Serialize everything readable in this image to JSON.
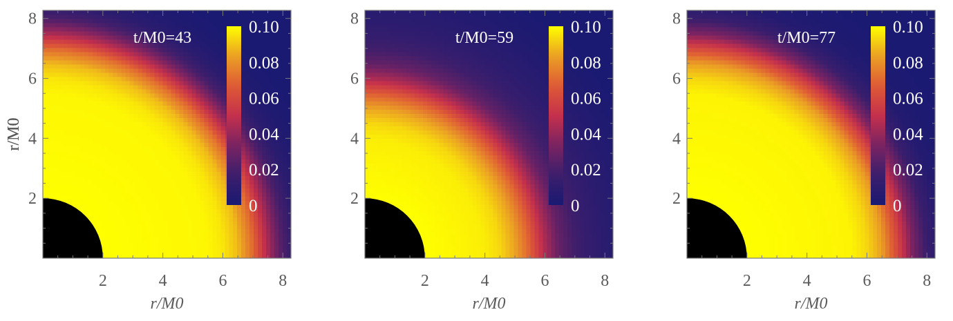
{
  "chart_data": [
    {
      "type": "heatmap",
      "title": "t/M0=43",
      "title_parts": {
        "prefix": "t/",
        "var": "M",
        "sub": "0",
        "suffix": "=43"
      },
      "xlabel": "r/M0",
      "ylabel": "r/M0",
      "xlim": [
        0,
        8.27
      ],
      "ylim": [
        0,
        8.27
      ],
      "xticks": [
        "2",
        "4",
        "6",
        "8"
      ],
      "yticks": [
        "2",
        "4",
        "6",
        "8"
      ],
      "colorbar": {
        "range": [
          0,
          0.1
        ],
        "ticks": [
          "0",
          "0.02",
          "0.04",
          "0.06",
          "0.08",
          "0.10"
        ]
      },
      "horizon_radius": 2,
      "radial_profile": {
        "r": [
          0,
          2,
          5.5,
          6,
          6.5,
          7,
          7.5,
          8,
          8.5,
          9,
          9.5,
          10,
          12
        ],
        "value": [
          0.1,
          0.1,
          0.0985,
          0.0957,
          0.088,
          0.071,
          0.044,
          0.021,
          0.008,
          0.003,
          0.001,
          0,
          0
        ]
      }
    },
    {
      "type": "heatmap",
      "title": "t/M0=59",
      "title_parts": {
        "prefix": "t/",
        "var": "M",
        "sub": "0",
        "suffix": "=59"
      },
      "xlabel": "r/M0",
      "ylabel": "r/M0",
      "xlim": [
        0,
        8.27
      ],
      "ylim": [
        0,
        8.27
      ],
      "xticks": [
        "2",
        "4",
        "6",
        "8"
      ],
      "yticks": [
        "2",
        "4",
        "6",
        "8"
      ],
      "colorbar": {
        "range": [
          0,
          0.1
        ],
        "ticks": [
          "0",
          "0.02",
          "0.04",
          "0.06",
          "0.08",
          "0.10"
        ]
      },
      "horizon_radius": 2,
      "radial_profile": {
        "r": [
          0,
          2,
          4,
          4.5,
          5,
          5.5,
          6,
          6.5,
          7,
          7.5,
          8,
          9,
          10,
          12
        ],
        "value": [
          0.1,
          0.1,
          0.097,
          0.093,
          0.084,
          0.068,
          0.045,
          0.027,
          0.018,
          0.012,
          0.008,
          0.003,
          0,
          0
        ]
      }
    },
    {
      "type": "heatmap",
      "title": "t/M0=77",
      "title_parts": {
        "prefix": "t/",
        "var": "M",
        "sub": "0",
        "suffix": "=77"
      },
      "xlabel": "r/M0",
      "ylabel": "r/M0",
      "xlim": [
        0,
        8.27
      ],
      "ylim": [
        0,
        8.27
      ],
      "xticks": [
        "2",
        "4",
        "6",
        "8"
      ],
      "yticks": [
        "2",
        "4",
        "6",
        "8"
      ],
      "colorbar": {
        "range": [
          0,
          0.1
        ],
        "ticks": [
          "0",
          "0.02",
          "0.04",
          "0.06",
          "0.08",
          "0.10"
        ]
      },
      "horizon_radius": 2,
      "radial_profile": {
        "r": [
          0,
          2,
          5.5,
          6,
          6.5,
          7,
          7.5,
          8,
          8.5,
          9,
          10,
          12
        ],
        "value": [
          0.1,
          0.1,
          0.098,
          0.093,
          0.083,
          0.061,
          0.034,
          0.015,
          0.005,
          0.002,
          0,
          0
        ]
      }
    }
  ],
  "colormap": [
    "#1a1a72",
    "#3c1e6c",
    "#7a2362",
    "#c4304c",
    "#de5a36",
    "#eba024",
    "#ffff00"
  ],
  "colors": {
    "horizon": "#000000",
    "frame": "#7a7a7a",
    "text": "#5a5a5a"
  }
}
